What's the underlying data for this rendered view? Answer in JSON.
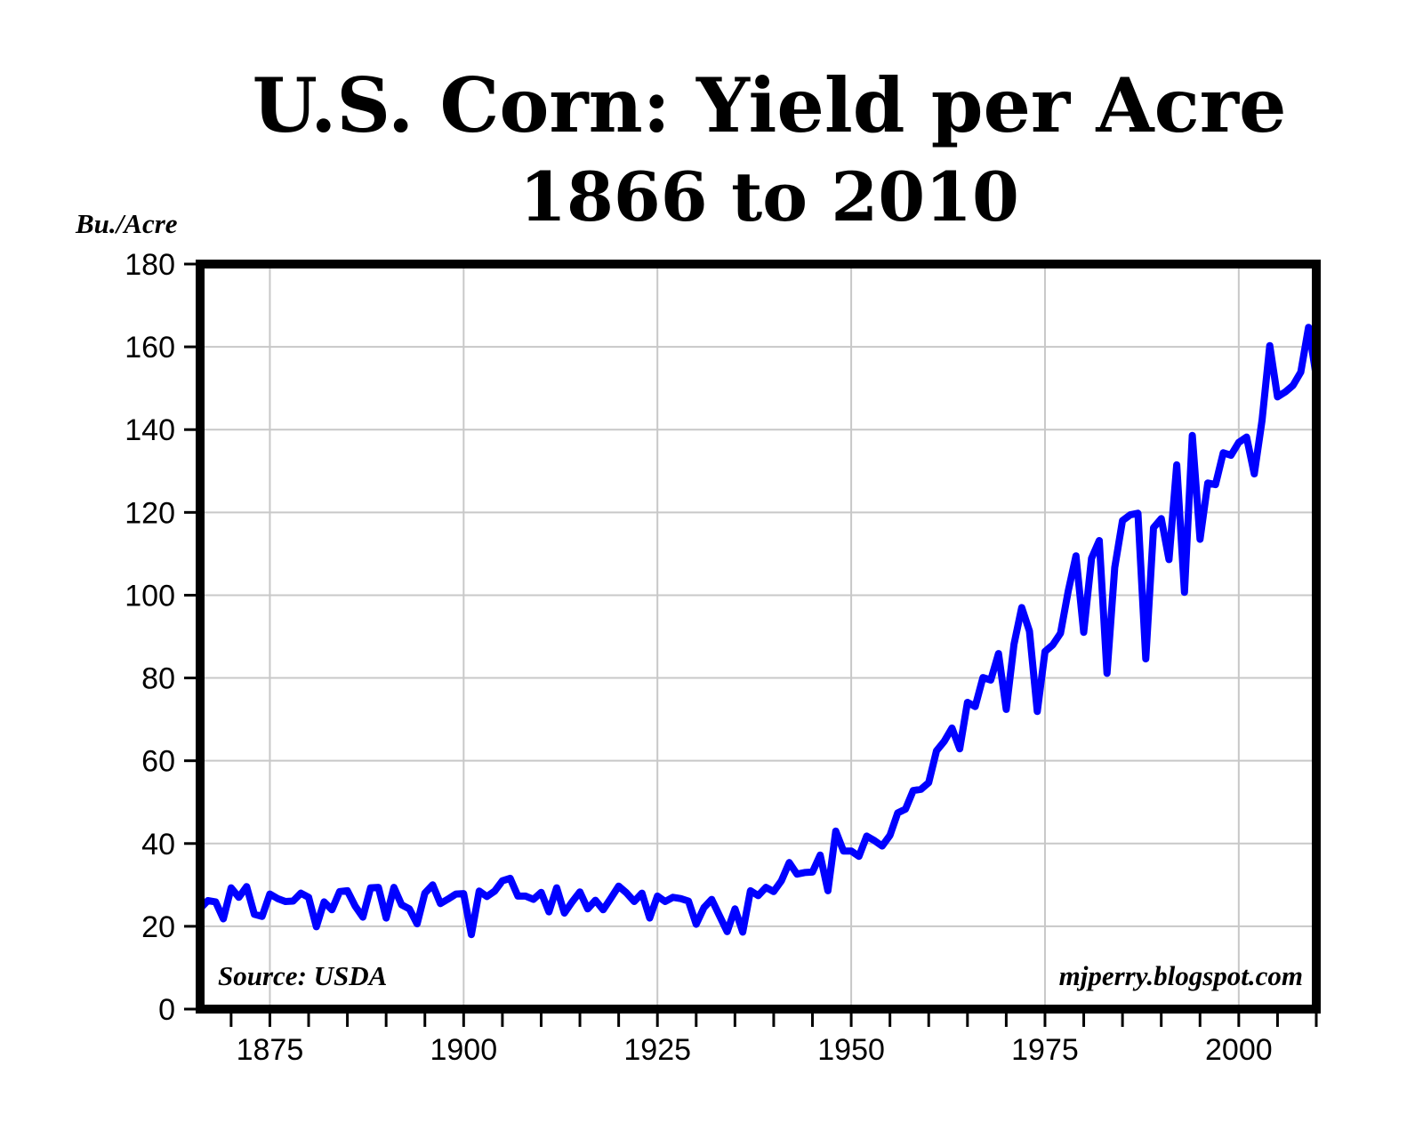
{
  "chart_data": {
    "type": "line",
    "title": "U.S. Corn: Yield per Acre",
    "subtitle": "1866 to 2010",
    "xlabel": "",
    "ylabel": "Bu./Acre",
    "xlim": [
      1866,
      2010
    ],
    "ylim": [
      0,
      180
    ],
    "x_ticks": [
      1875,
      1900,
      1925,
      1950,
      1975,
      2000
    ],
    "y_ticks": [
      0,
      20,
      40,
      60,
      80,
      100,
      120,
      140,
      160,
      180
    ],
    "grid": true,
    "legend": "none",
    "line_color": "#0000ff",
    "source_note": "Source: USDA",
    "credit_note": "mjperry.blogspot.com",
    "series": [
      {
        "x": [
          1866,
          1867,
          1868,
          1869,
          1870,
          1871,
          1872,
          1873,
          1874,
          1875,
          1876,
          1877,
          1878,
          1879,
          1880,
          1881,
          1882,
          1883,
          1884,
          1885,
          1886,
          1887,
          1888,
          1889,
          1890,
          1891,
          1892,
          1893,
          1894,
          1895,
          1896,
          1897,
          1898,
          1899,
          1900,
          1901,
          1902,
          1903,
          1904,
          1905,
          1906,
          1907,
          1908,
          1909,
          1910,
          1911,
          1912,
          1913,
          1914,
          1915,
          1916,
          1917,
          1918,
          1919,
          1920,
          1921,
          1922,
          1923,
          1924,
          1925,
          1926,
          1927,
          1928,
          1929,
          1930,
          1931,
          1932,
          1933,
          1934,
          1935,
          1936,
          1937,
          1938,
          1939,
          1940,
          1941,
          1942,
          1943,
          1944,
          1945,
          1946,
          1947,
          1948,
          1949,
          1950,
          1951,
          1952,
          1953,
          1954,
          1955,
          1956,
          1957,
          1958,
          1959,
          1960,
          1961,
          1962,
          1963,
          1964,
          1965,
          1966,
          1967,
          1968,
          1969,
          1970,
          1971,
          1972,
          1973,
          1974,
          1975,
          1976,
          1977,
          1978,
          1979,
          1980,
          1981,
          1982,
          1983,
          1984,
          1985,
          1986,
          1987,
          1988,
          1989,
          1990,
          1991,
          1992,
          1993,
          1994,
          1995,
          1996,
          1997,
          1998,
          1999,
          2000,
          2001,
          2002,
          2003,
          2004,
          2005,
          2006,
          2007,
          2008,
          2009,
          2010
        ],
        "values": [
          24.3,
          26.2,
          25.9,
          21.8,
          29.3,
          27.0,
          29.6,
          22.9,
          22.4,
          27.8,
          26.7,
          26.0,
          26.1,
          28.0,
          27.0,
          19.9,
          25.9,
          24.0,
          28.4,
          28.6,
          24.9,
          22.2,
          29.3,
          29.4,
          22.0,
          29.4,
          25.2,
          24.2,
          20.6,
          28.0,
          30.0,
          25.5,
          26.6,
          27.8,
          27.9,
          18.0,
          28.5,
          27.2,
          28.5,
          31.0,
          31.6,
          27.3,
          27.3,
          26.5,
          28.2,
          23.5,
          29.3,
          23.2,
          25.9,
          28.3,
          24.2,
          26.3,
          24.0,
          26.8,
          29.7,
          28.1,
          26.0,
          28.0,
          22.0,
          27.3,
          26.0,
          27.0,
          26.7,
          26.1,
          20.5,
          24.5,
          26.5,
          22.6,
          18.7,
          24.2,
          18.6,
          28.6,
          27.4,
          29.4,
          28.4,
          31.0,
          35.4,
          32.6,
          33.0,
          33.1,
          37.2,
          28.6,
          43.0,
          38.2,
          38.2,
          36.9,
          41.8,
          40.7,
          39.4,
          42.0,
          47.4,
          48.3,
          52.8,
          53.1,
          54.7,
          62.4,
          64.7,
          67.9,
          62.9,
          74.1,
          73.1,
          80.1,
          79.5,
          85.9,
          72.4,
          88.1,
          97.0,
          91.3,
          71.9,
          86.4,
          88.0,
          90.8,
          101.0,
          109.5,
          91.0,
          108.9,
          113.2,
          81.1,
          106.7,
          118.0,
          119.4,
          119.8,
          84.6,
          116.3,
          118.5,
          108.6,
          131.5,
          100.7,
          138.6,
          113.5,
          127.1,
          126.7,
          134.4,
          133.8,
          136.9,
          138.2,
          129.3,
          142.2,
          160.3,
          147.9,
          149.1,
          150.7,
          153.9,
          164.7,
          152.8
        ]
      }
    ]
  }
}
